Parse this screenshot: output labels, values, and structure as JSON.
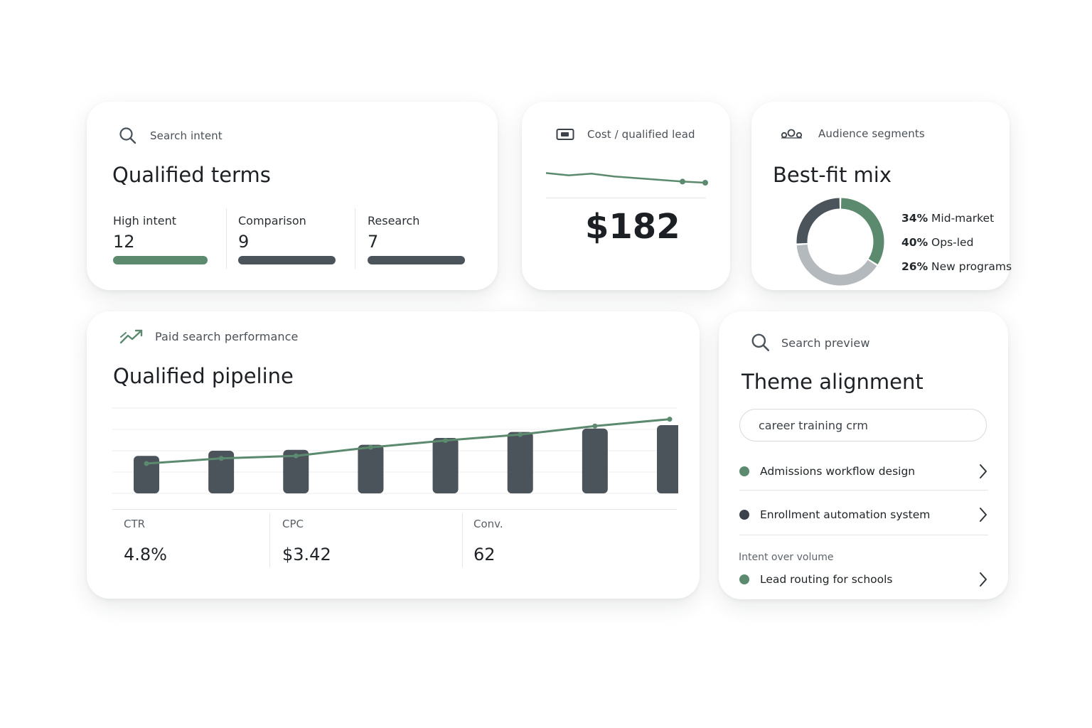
{
  "colors": {
    "accent_green": "#5b8a6e",
    "slate": "#4b535b",
    "light_gray": "#b4b9bd"
  },
  "search_intent": {
    "label": "Search intent",
    "icon": "search-icon",
    "title": "Qualified terms",
    "metrics": [
      {
        "label": "High intent",
        "value": "12",
        "color": "#5b8a6e"
      },
      {
        "label": "Comparison",
        "value": "9",
        "color": "#4b535b"
      },
      {
        "label": "Research",
        "value": "7",
        "color": "#4b535b"
      }
    ]
  },
  "cost_card": {
    "label": "Cost / qualified lead",
    "icon": "wallet-icon",
    "value": "$182",
    "sparkline": [
      42,
      38,
      41,
      36,
      33,
      30,
      27,
      25
    ]
  },
  "audience": {
    "label": "Audience segments",
    "icon": "audience-icon",
    "title": "Best-fit mix",
    "segments": [
      {
        "pct": "34%",
        "name": "Mid-market",
        "value": 34,
        "color": "#5b8a6e"
      },
      {
        "pct": "40%",
        "name": "Ops-led",
        "value": 40,
        "color": "#b4b9bd"
      },
      {
        "pct": "26%",
        "name": "New programs",
        "value": 26,
        "color": "#4b535b"
      }
    ]
  },
  "performance": {
    "label": "Paid search performance",
    "icon": "trend-up-icon",
    "title": "Qualified pipeline",
    "chart_data": {
      "type": "bar",
      "bars": [
        44,
        50,
        51,
        57,
        65,
        72,
        76,
        80
      ],
      "line": [
        35,
        41,
        44,
        54,
        62,
        69,
        79,
        87
      ]
    },
    "stats": [
      {
        "label": "CTR",
        "value": "4.8%"
      },
      {
        "label": "CPC",
        "value": "$3.42"
      },
      {
        "label": "Conv.",
        "value": "62"
      }
    ]
  },
  "search_preview": {
    "label": "Search preview",
    "icon": "search-icon",
    "title": "Theme alignment",
    "query": "career training crm",
    "results": [
      {
        "label": "Admissions workflow design",
        "color": "#5b8a6e"
      },
      {
        "label": "Enrollment automation system",
        "color": "#3b4249"
      }
    ],
    "section_label": "Intent over volume",
    "section_results": [
      {
        "label": "Lead routing for schools",
        "color": "#5b8a6e"
      }
    ]
  }
}
